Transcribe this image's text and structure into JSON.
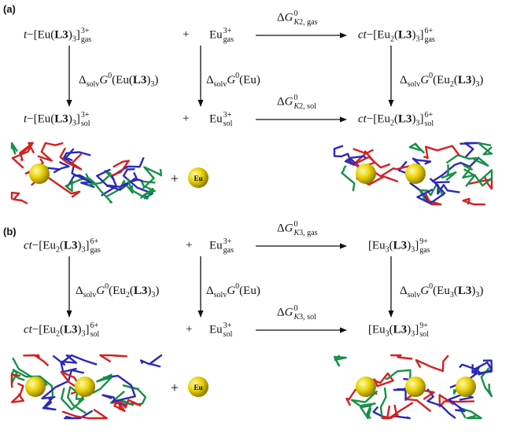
{
  "panels": [
    {
      "label": "(a)",
      "top": {
        "left": [
          "t",
          "−[Eu(",
          "L3",
          ")",
          "3",
          "]",
          "3+",
          "gas"
        ],
        "plus": "+",
        "right": [
          "Eu",
          "3+",
          "gas"
        ],
        "arrow": [
          "Δ",
          "G",
          "0",
          "K",
          "2, gas"
        ],
        "product": [
          "ct",
          "−[Eu",
          "2",
          "(",
          "L3",
          ")",
          "3",
          "]",
          "6+",
          "gas"
        ]
      },
      "solvation": {
        "left": [
          "Δ",
          "solv",
          "G",
          "0",
          "(Eu(",
          "L3",
          ")",
          "3",
          ")"
        ],
        "middle": [
          "Δ",
          "solv",
          "G",
          "0",
          "(Eu)"
        ],
        "right": [
          "Δ",
          "solv",
          "G",
          "0",
          "(Eu",
          "2",
          "(",
          "L3",
          ")",
          "3",
          ")"
        ]
      },
      "bottom": {
        "left": [
          "t",
          "−[Eu(",
          "L3",
          ")",
          "3",
          "]",
          "3+",
          "sol"
        ],
        "plus": "+",
        "right": [
          "Eu",
          "3+",
          "sol"
        ],
        "arrow": [
          "Δ",
          "G",
          "0",
          "K",
          "2, sol"
        ],
        "product": [
          "ct",
          "−[Eu",
          "2",
          "(",
          "L3",
          ")",
          "3",
          "]",
          "6+",
          "sol"
        ]
      },
      "structures": {
        "plus": "+",
        "ion": "Eu"
      }
    },
    {
      "label": "(b)",
      "top": {
        "left": [
          "ct",
          "−[Eu",
          "2",
          "(",
          "L3",
          ")",
          "3",
          "]",
          "6+",
          "gas"
        ],
        "plus": "+",
        "right": [
          "Eu",
          "3+",
          "gas"
        ],
        "arrow": [
          "Δ",
          "G",
          "0",
          "K",
          "3, gas"
        ],
        "product": [
          "[Eu",
          "3",
          "(",
          "L3",
          ")",
          "3",
          "]",
          "9+",
          "gas"
        ]
      },
      "solvation": {
        "left": [
          "Δ",
          "solv",
          "G",
          "0",
          "(Eu",
          "2",
          "(",
          "L3",
          ")",
          "3",
          ")"
        ],
        "middle": [
          "Δ",
          "solv",
          "G",
          "0",
          "(Eu)"
        ],
        "right": [
          "Δ",
          "solv",
          "G",
          "0",
          "(Eu",
          "3",
          "(",
          "L3",
          ")",
          "3",
          ")"
        ]
      },
      "bottom": {
        "left": [
          "ct",
          "−[Eu",
          "2",
          "(",
          "L3",
          ")",
          "3",
          "]",
          "6+",
          "sol"
        ],
        "plus": "+",
        "right": [
          "Eu",
          "3+",
          "sol"
        ],
        "arrow": [
          "Δ",
          "G",
          "0",
          "K",
          "3, sol"
        ],
        "product": [
          "[Eu",
          "3",
          "(",
          "L3",
          ")",
          "3",
          "]",
          "9+",
          "sol"
        ]
      },
      "structures": {
        "plus": "+",
        "ion": "Eu"
      }
    }
  ]
}
